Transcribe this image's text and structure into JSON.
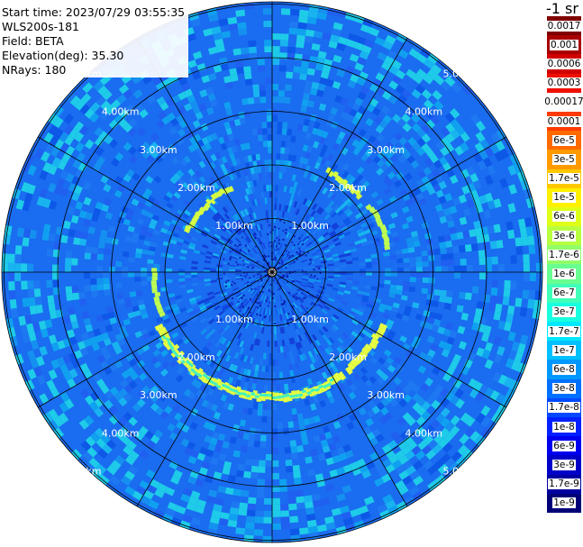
{
  "header": {
    "start_time": "Start time: 2023/07/29 03:55:35",
    "instrument": "WLS200s-181",
    "field": "Field: BETA",
    "elevation": "Elevation(deg): 35.30",
    "nrays": "NRays: 180"
  },
  "unit_label": "-1 sr",
  "range_labels": [
    "1.00km",
    "2.00km",
    "3.00km",
    "4.00km",
    "5.00km"
  ],
  "legend": [
    {
      "label": "0.0017",
      "color": "#800000"
    },
    {
      "label": "0.001",
      "color": "#a80000"
    },
    {
      "label": "0.0006",
      "color": "#d00000"
    },
    {
      "label": "0.0003",
      "color": "#f01000"
    },
    {
      "label": "0.00017",
      "color": "#ffffff"
    },
    {
      "label": "0.0001",
      "color": "#ff3a00"
    },
    {
      "label": "6e-5",
      "color": "#ff6a00"
    },
    {
      "label": "3e-5",
      "color": "#ff9a00"
    },
    {
      "label": "1.7e-5",
      "color": "#ffc800"
    },
    {
      "label": "1e-5",
      "color": "#fff000"
    },
    {
      "label": "6e-6",
      "color": "#e0ff18"
    },
    {
      "label": "3e-6",
      "color": "#b8ff40"
    },
    {
      "label": "1.7e-6",
      "color": "#90ff68"
    },
    {
      "label": "1e-6",
      "color": "#68ff90"
    },
    {
      "label": "6e-7",
      "color": "#40ffb8"
    },
    {
      "label": "3e-7",
      "color": "#18ffe0"
    },
    {
      "label": "1.7e-7",
      "color": "#00e8ff"
    },
    {
      "label": "1e-7",
      "color": "#00c0ff"
    },
    {
      "label": "6e-8",
      "color": "#0098ff"
    },
    {
      "label": "3e-8",
      "color": "#0070ff"
    },
    {
      "label": "1.7e-8",
      "color": "#0048ff"
    },
    {
      "label": "1e-8",
      "color": "#0020ff"
    },
    {
      "label": "6e-9",
      "color": "#0000f0"
    },
    {
      "label": "3e-9",
      "color": "#0000c8"
    },
    {
      "label": "1.7e-9",
      "color": "#0000a0"
    },
    {
      "label": "1e-9",
      "color": "#000078"
    }
  ],
  "colors": {
    "background_blue": "#1a6cf0",
    "speckle_cyan": "#19b4f0",
    "aerosol_ring": "#e6ff40",
    "grid": "#000000"
  }
}
